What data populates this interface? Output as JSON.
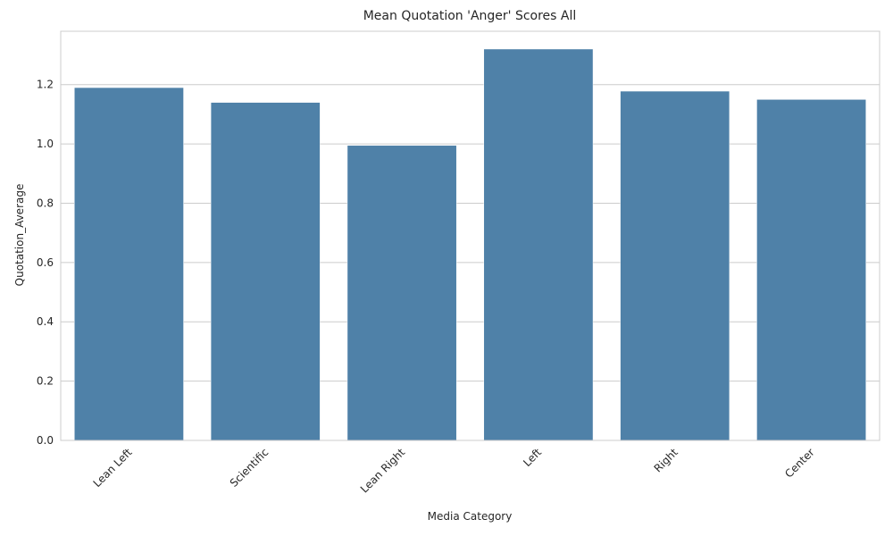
{
  "chart_data": {
    "type": "bar",
    "title": "Mean Quotation 'Anger' Scores All",
    "xlabel": "Media Category",
    "ylabel": "Quotation_Average",
    "categories": [
      "Lean Left",
      "Scientific",
      "Lean Right",
      "Left",
      "Right",
      "Center"
    ],
    "values": [
      1.19,
      1.14,
      0.995,
      1.32,
      1.178,
      1.15
    ],
    "ylim": [
      0,
      1.38
    ],
    "yticks": [
      0.0,
      0.2,
      0.4,
      0.6,
      0.8,
      1.0,
      1.2
    ],
    "ytick_labels": [
      "0.0",
      "0.2",
      "0.4",
      "0.6",
      "0.8",
      "1.0",
      "1.2"
    ],
    "grid": "horizontal",
    "bar_color": "#4f81a8",
    "grid_color": "#cccccc",
    "axes_edge_color": "#cccccc"
  }
}
